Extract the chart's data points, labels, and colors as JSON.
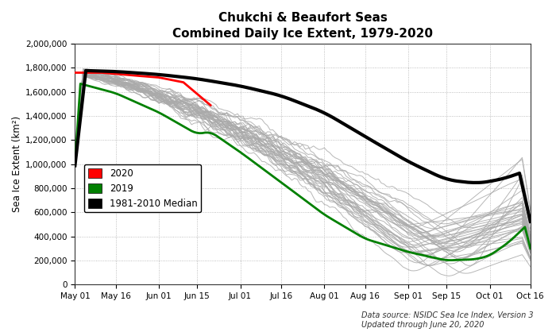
{
  "title_line1": "Chukchi & Beaufort Seas",
  "title_line2": "Combined Daily Ice Extent, 1979-2020",
  "ylabel": "Sea Ice Extent (km²)",
  "ylim": [
    0,
    2000000
  ],
  "yticks": [
    0,
    200000,
    400000,
    600000,
    800000,
    1000000,
    1200000,
    1400000,
    1600000,
    1800000,
    2000000
  ],
  "ytick_labels": [
    "0",
    "200,000",
    "400,000",
    "600,000",
    "800,000",
    "1,000,000",
    "1,200,000",
    "1,400,000",
    "1,600,000",
    "1,800,000",
    "2,000,000"
  ],
  "xtick_labels": [
    "May 01",
    "May 16",
    "Jun 01",
    "Jun 15",
    "Jul 01",
    "Jul 16",
    "Aug 01",
    "Aug 16",
    "Sep 01",
    "Sep 15",
    "Oct 01",
    "Oct 16"
  ],
  "xtick_pos": [
    0,
    15,
    31,
    45,
    61,
    76,
    92,
    107,
    123,
    137,
    153,
    168
  ],
  "color_grey": "#aaaaaa",
  "color_2020": "#ff0000",
  "color_2019": "#008000",
  "color_median": "#000000",
  "color_background": "#ffffff",
  "grid_color": "#999999",
  "source_text": "Data source: NSIDC Sea Ice Index, Version 3\nUpdated through June 20, 2020",
  "legend_labels": [
    "2020",
    "2019",
    "1981-2010 Median"
  ],
  "n_days": 169,
  "n_years_grey": 38
}
